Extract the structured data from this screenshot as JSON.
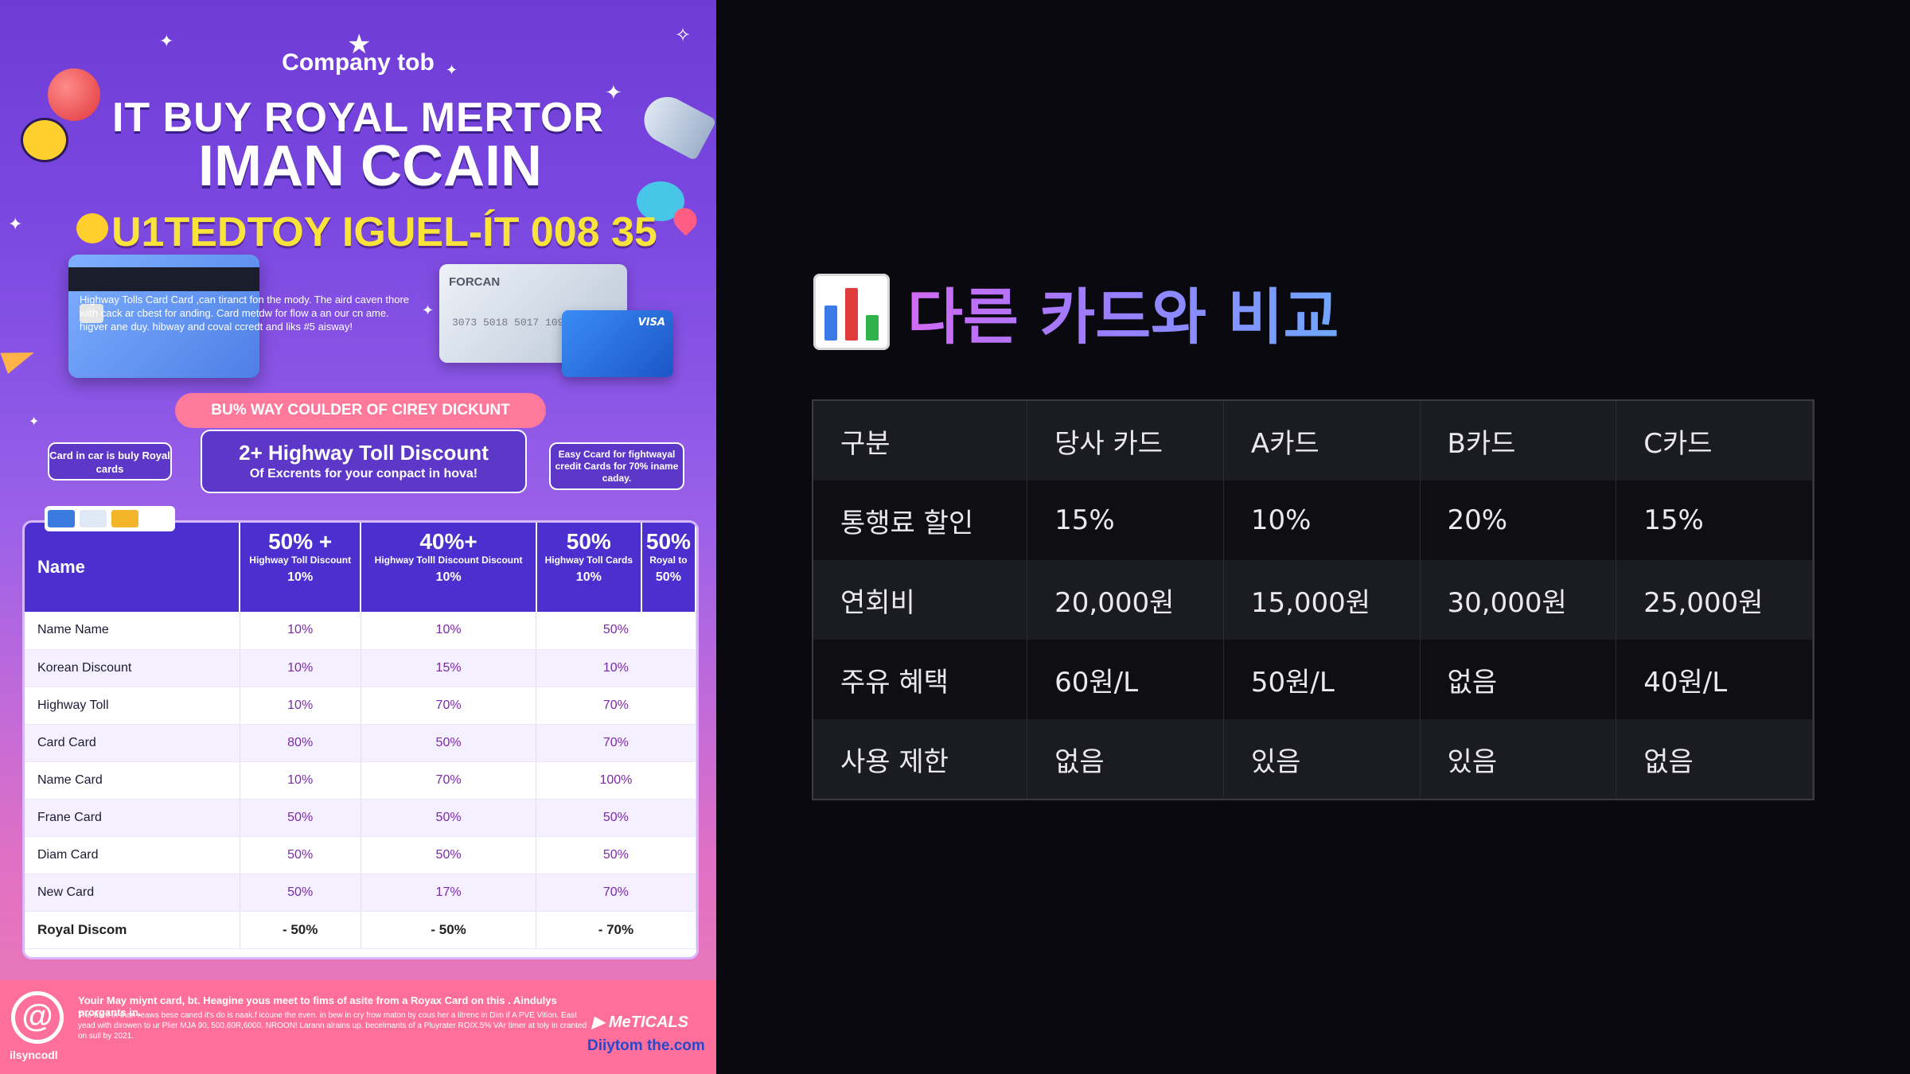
{
  "poster": {
    "company": "Company  tob",
    "title_line1": "IT BUY ROYAL MERTOR",
    "title_line2": "IMAN CCAIN",
    "title_line3": "U1TEDTOY IGUEL-ÍT 008 35",
    "card_text": "Highway Tolls Card Card ,can tiranct fon the mody. The aird caven thore with cack ar cbest for anding. Card metdw for flow a an our cn ame. higver ane duy. hibway and coval ccredt and liks #5 aisway!",
    "silver_card_brand": "FORCAN",
    "silver_card_number": "3073 5018 5017 109",
    "visa_label": "VISA",
    "banner": "BU% WAY COULDER OF CIREY DICKUNT",
    "bubble_left": "Card in car is buly Royal cards",
    "bubble_mid_big": "2+ Highway Toll Discount",
    "bubble_mid_small": "Of Excrents for your conpact in hova!",
    "bubble_right": "Easy Ccard for fightwayal credit Cards for 70% iname caday.",
    "table": {
      "name_header": "Name",
      "columns": [
        {
          "big": "50% +",
          "small": "Highway Toll Discount",
          "pct": "10%"
        },
        {
          "big": "40%+",
          "small": "Highway Tolll Discount Discount",
          "pct": "10%"
        },
        {
          "big": "50%",
          "small": "Highway Toll Cards",
          "pct": "10%"
        },
        {
          "big": "50%",
          "small": "Royal to",
          "pct": "50%"
        }
      ],
      "rows": [
        {
          "name": "Name Name",
          "c1": "10%",
          "c2": "10%",
          "c3": "50%"
        },
        {
          "name": "Korean Discount",
          "c1": "10%",
          "c2": "15%",
          "c3": "10%"
        },
        {
          "name": "Highway Toll",
          "c1": "10%",
          "c2": "70%",
          "c3": "70%"
        },
        {
          "name": "Card Card",
          "c1": "80%",
          "c2": "50%",
          "c3": "70%"
        },
        {
          "name": "Name Card",
          "c1": "10%",
          "c2": "70%",
          "c3": "100%"
        },
        {
          "name": "Frane Card",
          "c1": "50%",
          "c2": "50%",
          "c3": "50%"
        },
        {
          "name": "Diam Card",
          "c1": "50%",
          "c2": "50%",
          "c3": "50%"
        },
        {
          "name": "New Card",
          "c1": "50%",
          "c2": "17%",
          "c3": "70%"
        },
        {
          "name": "Royal Discom",
          "c1": "- 50%",
          "c2": "- 50%",
          "c3": "- 70%"
        }
      ]
    },
    "footer": {
      "logo": "@",
      "logo_text": "ilsyncodl",
      "fine1": "Youir May miynt card, bt. Heagine yous meet to fims of asite from a Royax Card on this . Aindulys prorgants in.",
      "fine2": "The bant in than reaws bese caned it's do is naak.f icoune the even. in bew in cry frow maton by cous her a litrenc in Dim if A PVE Vition. East yead with dirowen to ur Plier MJA 90, 500,60R,6000. NROON! Larann alrains up. becelmants of a Pluyrater ROIX.5% VAr timer at toly in cranted on sull by 2021.",
      "brand": "MeTICALS",
      "domain": "Diiytom the.com"
    }
  },
  "slide": {
    "title": "다른 카드와 비교",
    "icon": "bar-chart-icon",
    "headers": [
      "구분",
      "당사 카드",
      "A카드",
      "B카드",
      "C카드"
    ],
    "rows": [
      [
        "통행료 할인",
        "15%",
        "10%",
        "20%",
        "15%"
      ],
      [
        "연회비",
        "20,000원",
        "15,000원",
        "30,000원",
        "25,000원"
      ],
      [
        "주유 혜택",
        "60원/L",
        "50원/L",
        "없음",
        "40원/L"
      ],
      [
        "사용 제한",
        "없음",
        "있음",
        "있음",
        "없음"
      ]
    ]
  },
  "colors": {
    "slide_bg": "#0a090f",
    "title_gradient_start": "#d16af5",
    "title_gradient_end": "#6fa6ff",
    "poster_accent": "#4b2fcf",
    "poster_yellow": "#f7e33a"
  }
}
